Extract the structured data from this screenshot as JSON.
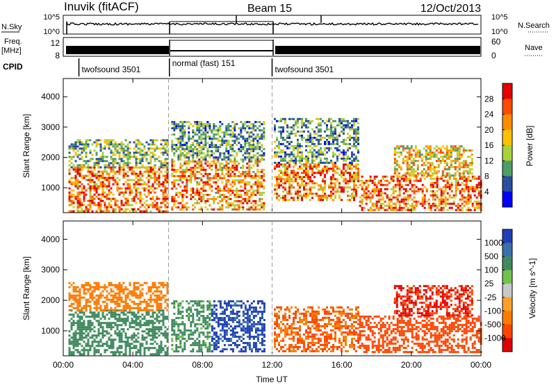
{
  "header": {
    "station": "Inuvik (fitACF)",
    "beam": "Beam 15",
    "date": "12/Oct/2013"
  },
  "aux_panels": {
    "nsky": {
      "left_label": "N.Sky",
      "left_ticks": [
        "10^5",
        "10^0"
      ],
      "right_ticks": [
        "10^5",
        "10^0"
      ],
      "right_label": "N.Search"
    },
    "freq": {
      "left_label_line1": "Freq.",
      "left_label_line2": "[MHz]",
      "left_ticks": [
        "12",
        "8"
      ],
      "right_ticks": [
        "60",
        "0"
      ],
      "right_label": "Nave"
    },
    "cpid": {
      "label": "CPID",
      "segments": [
        {
          "name": "twofsound 3501",
          "start_h": 0.9,
          "end_h": 6.1
        },
        {
          "name": "normal (fast) 151",
          "start_h": 6.1,
          "end_h": 12.0
        },
        {
          "name": "twofsound 3501",
          "start_h": 12.0,
          "end_h": 24.0
        }
      ]
    }
  },
  "chart_data": [
    {
      "type": "heatmap",
      "name": "power",
      "ylabel": "Slant Range [km]",
      "xlabel": "Time UT",
      "xticks": [
        "00:00",
        "04:00",
        "08:00",
        "12:00",
        "16:00",
        "20:00",
        "00:00"
      ],
      "xlim_hours": [
        0,
        24
      ],
      "ylim": [
        180,
        4600
      ],
      "yticks": [
        1000,
        2000,
        3000,
        4000
      ],
      "colorbar": {
        "label": "Power [dB]",
        "ticks": [
          "28",
          "24",
          "20",
          "16",
          "12",
          "8",
          "4"
        ],
        "colors": [
          "#e60000",
          "#ff4a00",
          "#ff8c00",
          "#ffc000",
          "#a8d13a",
          "#4e9e66",
          "#2a4f9e",
          "#0000ff"
        ],
        "range": [
          0,
          32
        ]
      },
      "regions": [
        {
          "t0": 0.3,
          "t1": 6.0,
          "r0": 250,
          "r1": 1700,
          "value": 24
        },
        {
          "t0": 0.3,
          "t1": 6.0,
          "r0": 1700,
          "r1": 2600,
          "value": 12
        },
        {
          "t0": 6.2,
          "t1": 11.5,
          "r0": 300,
          "r1": 1900,
          "value": 22
        },
        {
          "t0": 6.2,
          "t1": 11.5,
          "r0": 1900,
          "r1": 3200,
          "value": 10
        },
        {
          "t0": 12.1,
          "t1": 17.0,
          "r0": 600,
          "r1": 1800,
          "value": 24
        },
        {
          "t0": 12.1,
          "t1": 17.0,
          "r0": 1800,
          "r1": 3300,
          "value": 10
        },
        {
          "t0": 17.0,
          "t1": 24.0,
          "r0": 300,
          "r1": 1400,
          "value": 24
        },
        {
          "t0": 19.0,
          "t1": 23.5,
          "r0": 1400,
          "r1": 2400,
          "value": 18
        }
      ]
    },
    {
      "type": "heatmap",
      "name": "velocity",
      "ylabel": "Slant Range [km]",
      "xlabel": "Time UT",
      "xticks": [
        "00:00",
        "04:00",
        "08:00",
        "12:00",
        "16:00",
        "20:00",
        "00:00"
      ],
      "xlim_hours": [
        0,
        24
      ],
      "ylim": [
        180,
        4600
      ],
      "yticks": [
        1000,
        2000,
        3000,
        4000
      ],
      "colorbar": {
        "label": "Velocity [m s^-1]",
        "ticks": [
          "1000",
          "500",
          "100",
          "25",
          "-25",
          "-100",
          "-500",
          "-1000"
        ],
        "colors": [
          "#1f3fb4",
          "#3a6faa",
          "#3f8a5e",
          "#6fc24a",
          "#c8c8c8",
          "#ffa028",
          "#ff7a00",
          "#ff4500",
          "#e00000"
        ]
      },
      "regions": [
        {
          "t0": 0.3,
          "t1": 6.0,
          "r0": 250,
          "r1": 1700,
          "value": 150
        },
        {
          "t0": 0.3,
          "t1": 6.0,
          "r0": 1700,
          "r1": 2600,
          "value": -200
        },
        {
          "t0": 6.2,
          "t1": 8.5,
          "r0": 300,
          "r1": 2000,
          "value": 80
        },
        {
          "t0": 8.5,
          "t1": 11.5,
          "r0": 300,
          "r1": 2000,
          "value": 900
        },
        {
          "t0": 12.1,
          "t1": 17.0,
          "r0": 300,
          "r1": 1800,
          "value": -300
        },
        {
          "t0": 17.0,
          "t1": 24.0,
          "r0": 300,
          "r1": 1500,
          "value": -500
        },
        {
          "t0": 19.0,
          "t1": 23.5,
          "r0": 1500,
          "r1": 2500,
          "value": -800
        }
      ]
    }
  ]
}
